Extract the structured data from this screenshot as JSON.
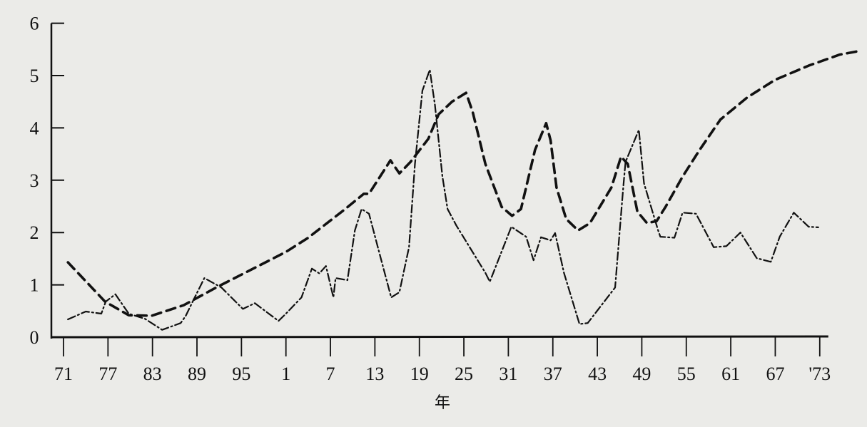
{
  "chart_data": {
    "type": "line",
    "title": "",
    "xlabel": "年",
    "ylabel": "",
    "xlim": [
      1871,
      1973
    ],
    "ylim": [
      0,
      6
    ],
    "grid": false,
    "legend": "none",
    "y_ticks": [
      0,
      1,
      2,
      3,
      4,
      5,
      6
    ],
    "x_ticks": [
      {
        "year": 1871,
        "label": "71"
      },
      {
        "year": 1877,
        "label": "77"
      },
      {
        "year": 1883,
        "label": "83"
      },
      {
        "year": 1889,
        "label": "89"
      },
      {
        "year": 1895,
        "label": "95"
      },
      {
        "year": 1901,
        "label": "1"
      },
      {
        "year": 1907,
        "label": "7"
      },
      {
        "year": 1913,
        "label": "13"
      },
      {
        "year": 1919,
        "label": "19"
      },
      {
        "year": 1925,
        "label": "25"
      },
      {
        "year": 1931,
        "label": "31"
      },
      {
        "year": 1937,
        "label": "37"
      },
      {
        "year": 1943,
        "label": "43"
      },
      {
        "year": 1949,
        "label": "49"
      },
      {
        "year": 1955,
        "label": "55"
      },
      {
        "year": 1961,
        "label": "61"
      },
      {
        "year": 1967,
        "label": "67"
      },
      {
        "year": 1973,
        "label": "'73"
      }
    ],
    "series": [
      {
        "style": "dashed-thick",
        "color": "#111111",
        "points": [
          [
            1871.6,
            1.43
          ],
          [
            1876.6,
            0.68
          ],
          [
            1879.8,
            0.42
          ],
          [
            1882.9,
            0.41
          ],
          [
            1887.2,
            0.61
          ],
          [
            1891.6,
            0.95
          ],
          [
            1901,
            1.63
          ],
          [
            1904,
            1.9
          ],
          [
            1909,
            2.45
          ],
          [
            1911.5,
            2.74
          ],
          [
            1912.2,
            2.74
          ],
          [
            1915.1,
            3.38
          ],
          [
            1916.3,
            3.13
          ],
          [
            1917.8,
            3.35
          ],
          [
            1920.2,
            3.79
          ],
          [
            1921.6,
            4.26
          ],
          [
            1923.4,
            4.5
          ],
          [
            1925.3,
            4.67
          ],
          [
            1926.2,
            4.3
          ],
          [
            1927.9,
            3.31
          ],
          [
            1930.1,
            2.49
          ],
          [
            1931.5,
            2.32
          ],
          [
            1932.7,
            2.45
          ],
          [
            1934.6,
            3.58
          ],
          [
            1936.1,
            4.09
          ],
          [
            1936.7,
            3.76
          ],
          [
            1937.5,
            2.86
          ],
          [
            1938.8,
            2.26
          ],
          [
            1940.4,
            2.04
          ],
          [
            1942,
            2.18
          ],
          [
            1944.9,
            2.86
          ],
          [
            1946.2,
            3.45
          ],
          [
            1947.1,
            3.31
          ],
          [
            1948.4,
            2.4
          ],
          [
            1949.7,
            2.18
          ],
          [
            1951,
            2.22
          ],
          [
            1952.2,
            2.49
          ],
          [
            1954.5,
            3.07
          ],
          [
            1956.8,
            3.58
          ],
          [
            1959.6,
            4.16
          ],
          [
            1963.2,
            4.58
          ],
          [
            1967,
            4.92
          ],
          [
            1971.5,
            5.19
          ],
          [
            1975.7,
            5.4
          ],
          [
            1978,
            5.46
          ]
        ]
      },
      {
        "style": "dash-dot",
        "color": "#111111",
        "points": [
          [
            1871.6,
            0.34
          ],
          [
            1874,
            0.49
          ],
          [
            1876.1,
            0.45
          ],
          [
            1876.7,
            0.68
          ],
          [
            1878,
            0.82
          ],
          [
            1879.8,
            0.45
          ],
          [
            1882,
            0.35
          ],
          [
            1884.3,
            0.14
          ],
          [
            1886.8,
            0.27
          ],
          [
            1887.5,
            0.41
          ],
          [
            1888.7,
            0.76
          ],
          [
            1890,
            1.13
          ],
          [
            1892.3,
            0.95
          ],
          [
            1895.2,
            0.54
          ],
          [
            1896.8,
            0.65
          ],
          [
            1900,
            0.31
          ],
          [
            1901,
            0.45
          ],
          [
            1903.1,
            0.76
          ],
          [
            1904.5,
            1.31
          ],
          [
            1905.5,
            1.22
          ],
          [
            1906.4,
            1.36
          ],
          [
            1907.4,
            0.76
          ],
          [
            1907.7,
            1.13
          ],
          [
            1909.3,
            1.09
          ],
          [
            1910.3,
            2.04
          ],
          [
            1911.2,
            2.45
          ],
          [
            1912.2,
            2.36
          ],
          [
            1913.4,
            1.72
          ],
          [
            1915.2,
            0.76
          ],
          [
            1916.3,
            0.86
          ],
          [
            1917.6,
            1.72
          ],
          [
            1918.4,
            3.31
          ],
          [
            1919.4,
            4.71
          ],
          [
            1920.4,
            5.11
          ],
          [
            1921.1,
            4.44
          ],
          [
            1922.1,
            3.08
          ],
          [
            1922.8,
            2.45
          ],
          [
            1924,
            2.13
          ],
          [
            1927.9,
            1.23
          ],
          [
            1928.5,
            1.06
          ],
          [
            1931.4,
            2.11
          ],
          [
            1933.4,
            1.92
          ],
          [
            1934.4,
            1.47
          ],
          [
            1935.4,
            1.91
          ],
          [
            1936.7,
            1.85
          ],
          [
            1937.3,
            1.99
          ],
          [
            1938.5,
            1.23
          ],
          [
            1940.6,
            0.25
          ],
          [
            1941.7,
            0.27
          ],
          [
            1945.4,
            0.95
          ],
          [
            1946.5,
            2.86
          ],
          [
            1946.8,
            3.35
          ],
          [
            1948.6,
            3.96
          ],
          [
            1949.3,
            2.94
          ],
          [
            1951.2,
            2.04
          ],
          [
            1951.5,
            1.92
          ],
          [
            1953.4,
            1.9
          ],
          [
            1954.5,
            2.38
          ],
          [
            1956.3,
            2.36
          ],
          [
            1958.7,
            1.72
          ],
          [
            1960.4,
            1.74
          ],
          [
            1962.3,
            2.0
          ],
          [
            1964.5,
            1.51
          ],
          [
            1966.4,
            1.44
          ],
          [
            1967.6,
            1.92
          ],
          [
            1969.5,
            2.38
          ],
          [
            1971.5,
            2.11
          ],
          [
            1972.8,
            2.1
          ]
        ]
      }
    ]
  }
}
